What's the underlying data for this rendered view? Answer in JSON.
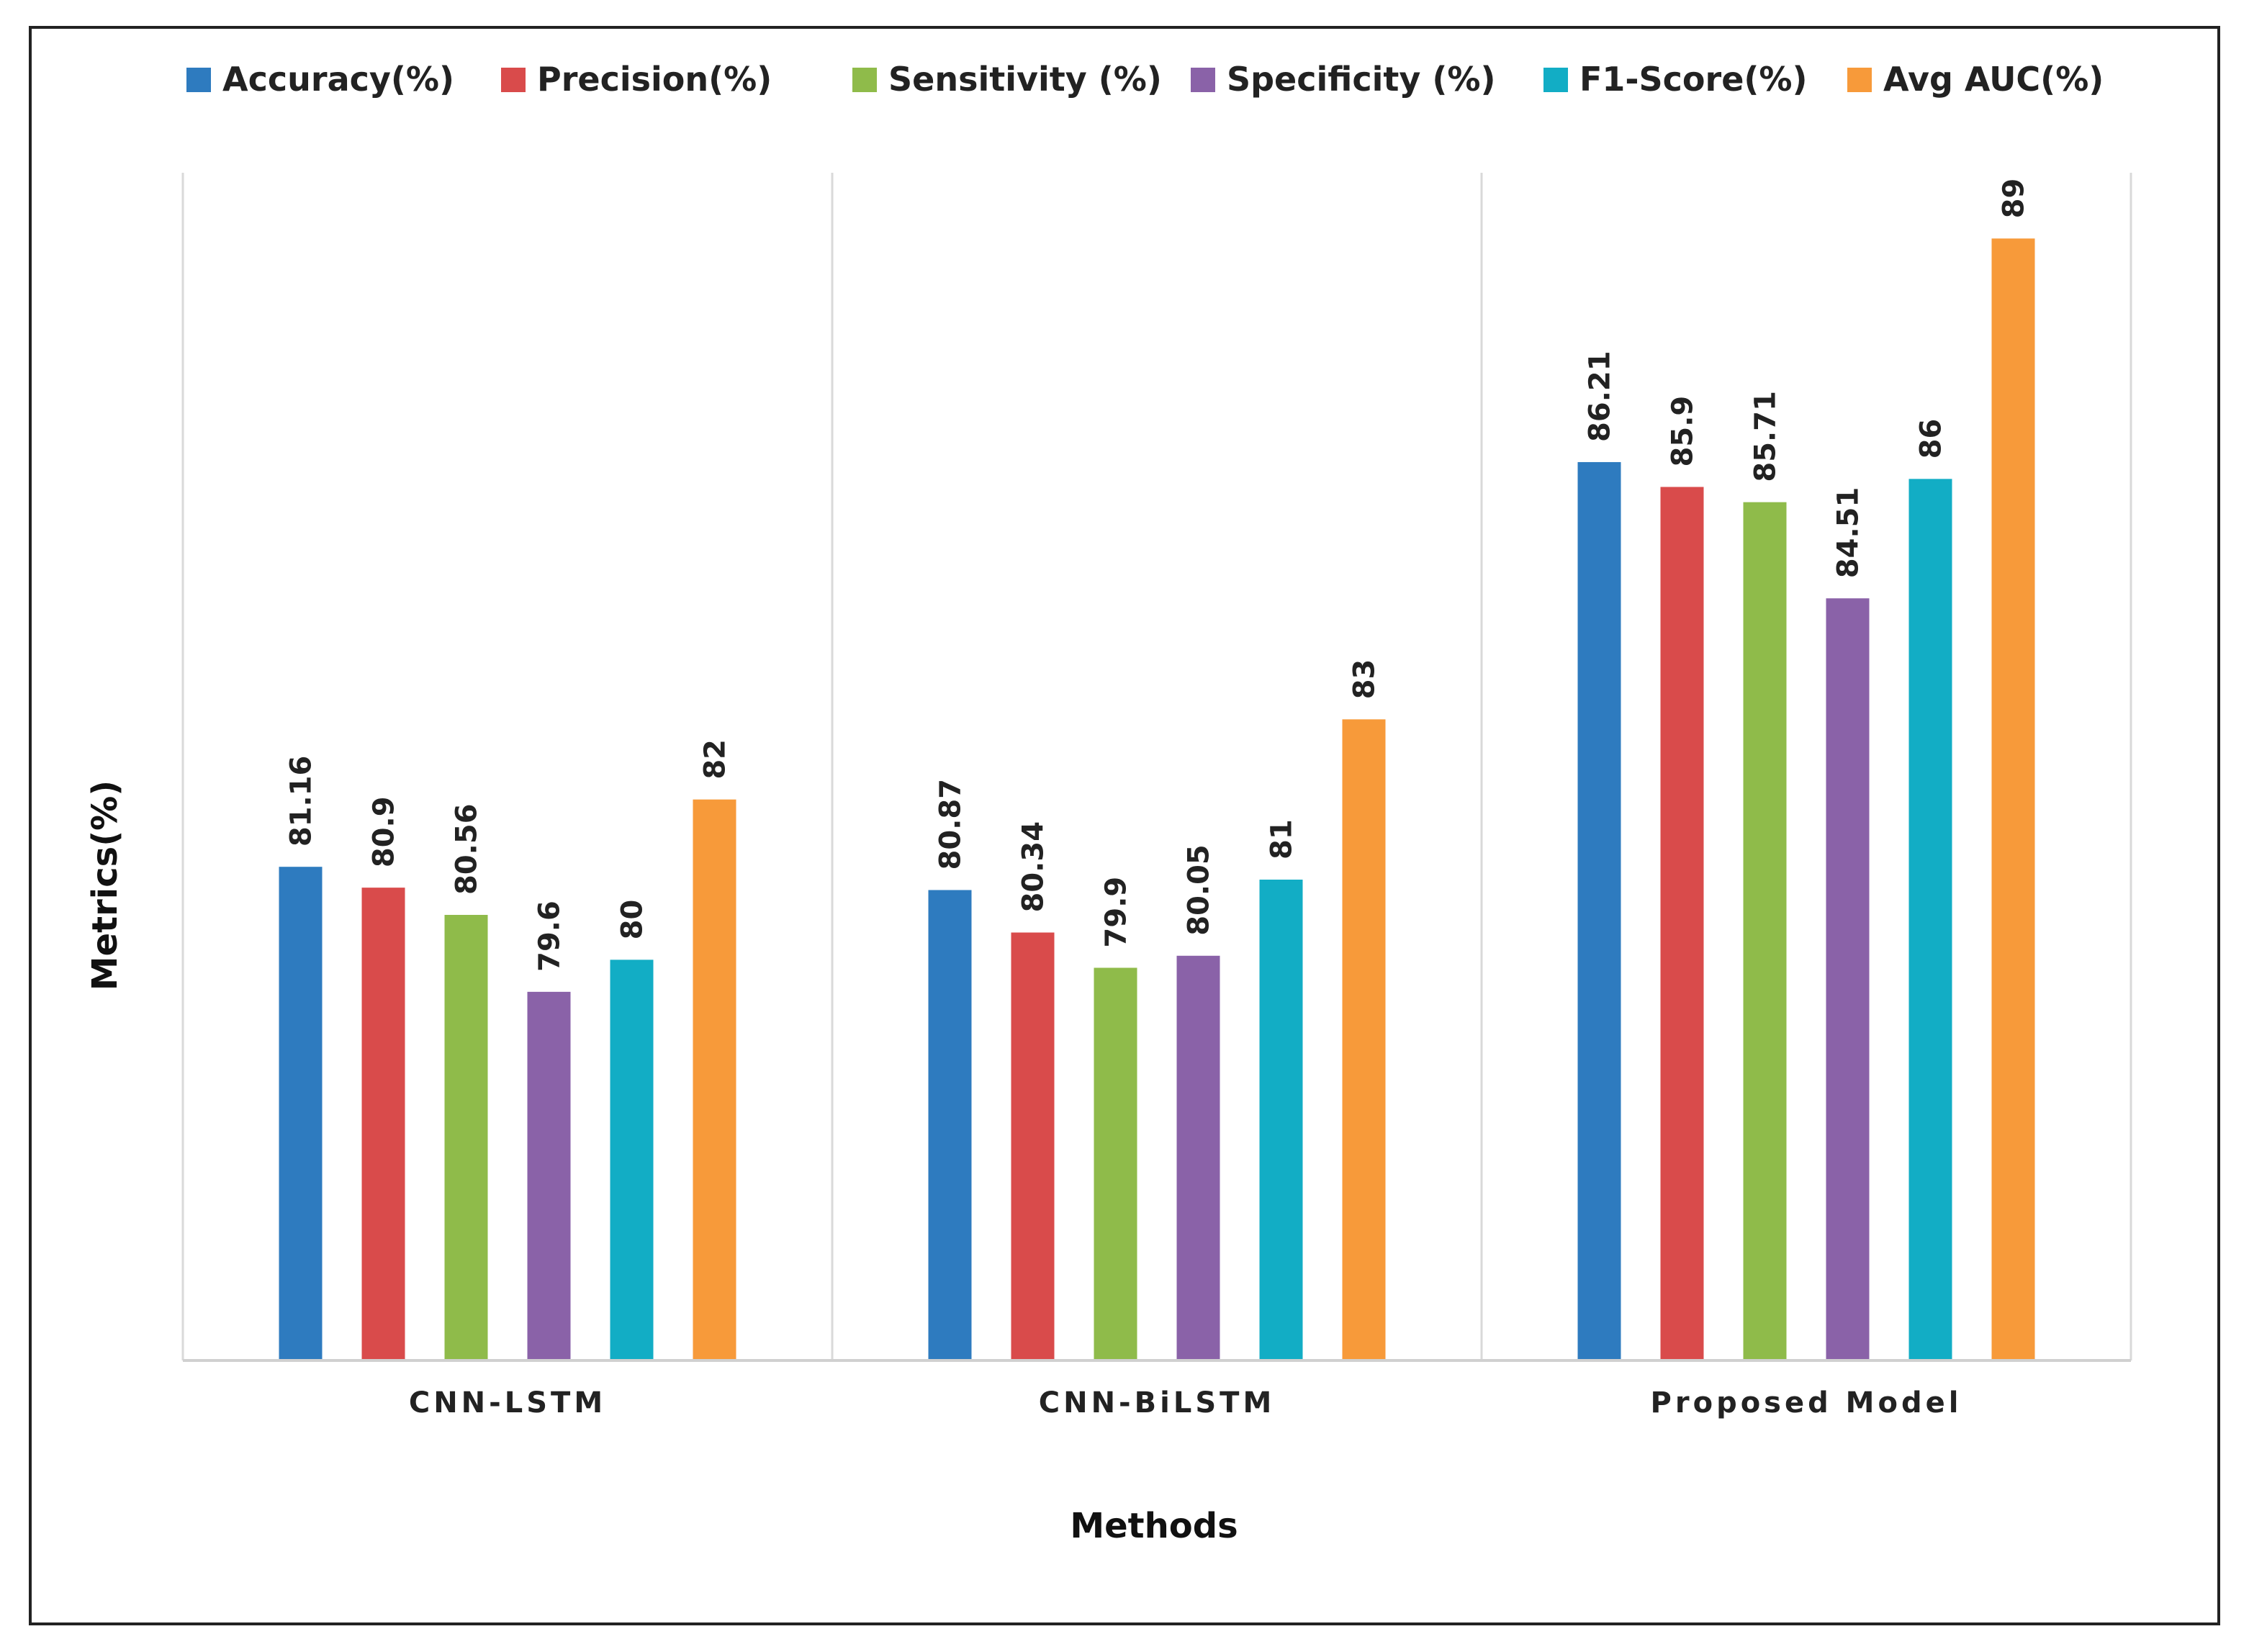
{
  "chart_data": {
    "type": "bar",
    "title": "",
    "xlabel": "Methods",
    "ylabel": "Metrics(%)",
    "categories": [
      "CNN-LSTM",
      "CNN-BiLSTM",
      "Proposed Model"
    ],
    "series": [
      {
        "name": "Accuracy(%)",
        "color": "#2e7bbf",
        "values": [
          81.16,
          80.87,
          86.21
        ],
        "labels": [
          "81.16",
          "80.87",
          "86.21"
        ]
      },
      {
        "name": "Precision(%)",
        "color": "#d94b4b",
        "values": [
          80.9,
          80.34,
          85.9
        ],
        "labels": [
          "80.9",
          "80.34",
          "85.9"
        ]
      },
      {
        "name": "Sensitivity (%)",
        "color": "#8fbb4a",
        "values": [
          80.56,
          79.9,
          85.71
        ],
        "labels": [
          "80.56",
          "79.9",
          "85.71"
        ]
      },
      {
        "name": "Specificity (%)",
        "color": "#8a62a8",
        "values": [
          79.6,
          80.05,
          84.51
        ],
        "labels": [
          "79.6",
          "80.05",
          "84.51"
        ]
      },
      {
        "name": "F1-Score(%)",
        "color": "#12adc5",
        "values": [
          80,
          81,
          86
        ],
        "labels": [
          "80",
          "81",
          "86"
        ]
      },
      {
        "name": "Avg AUC(%)",
        "color": "#f79a3a",
        "values": [
          82,
          83,
          89
        ],
        "labels": [
          "82",
          "83",
          "89"
        ]
      }
    ],
    "ylim": [
      75,
      90
    ],
    "grid": false,
    "legend_position": "top"
  }
}
